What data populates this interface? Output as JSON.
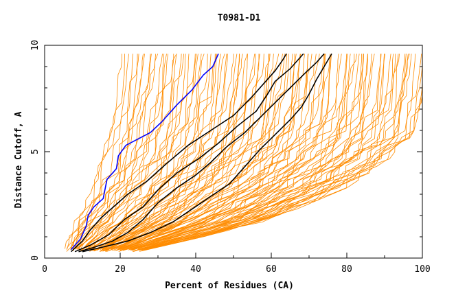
{
  "chart_data": {
    "type": "line",
    "title": "T0981-D1",
    "xlabel": "Percent of Residues (CA)",
    "ylabel": "Distance Cutoff, A",
    "xlim": [
      0,
      100
    ],
    "ylim": [
      0,
      10
    ],
    "x_ticks": [
      "0",
      "20",
      "40",
      "60",
      "80",
      "100"
    ],
    "y_ticks": [
      "0",
      "5",
      "10"
    ],
    "grid": false,
    "legend": "none",
    "colors": {
      "background_curves": "#ff8c00",
      "highlight": "#0000ff",
      "reference": "#000000"
    },
    "background_band": {
      "count": 110,
      "left_curve": [
        [
          5.5,
          0.35
        ],
        [
          7,
          1.2
        ],
        [
          9.5,
          2.2
        ],
        [
          12.5,
          3.5
        ],
        [
          15,
          5
        ],
        [
          16.5,
          6.5
        ],
        [
          17.5,
          8
        ],
        [
          18.5,
          9.6
        ]
      ],
      "right_curve": [
        [
          26,
          0.35
        ],
        [
          42,
          1.0
        ],
        [
          60,
          1.8
        ],
        [
          80,
          3.3
        ],
        [
          91,
          4.6
        ],
        [
          97.5,
          5.8
        ],
        [
          100,
          7.5
        ],
        [
          100,
          9.6
        ]
      ]
    },
    "series": [
      {
        "color": "#0000ff",
        "points": [
          [
            7,
            0.4
          ],
          [
            9.5,
            0.9
          ],
          [
            11,
            1.5
          ],
          [
            11.5,
            2.0
          ],
          [
            13,
            2.4
          ],
          [
            15.5,
            2.8
          ],
          [
            16.5,
            3.7
          ],
          [
            19,
            4.2
          ],
          [
            19.5,
            4.8
          ],
          [
            21.5,
            5.3
          ],
          [
            28,
            5.9
          ],
          [
            31,
            6.4
          ],
          [
            35,
            7.2
          ],
          [
            39,
            7.9
          ],
          [
            42,
            8.6
          ],
          [
            44.5,
            9.0
          ],
          [
            46,
            9.6
          ]
        ]
      },
      {
        "color": "#000000",
        "points": [
          [
            7,
            0.3
          ],
          [
            10,
            0.8
          ],
          [
            12,
            1.3
          ],
          [
            15,
            1.9
          ],
          [
            22,
            3.0
          ],
          [
            27,
            3.6
          ],
          [
            32,
            4.4
          ],
          [
            38,
            5.3
          ],
          [
            44,
            6.0
          ],
          [
            50,
            6.7
          ],
          [
            55,
            7.6
          ],
          [
            58,
            8.2
          ],
          [
            61,
            8.8
          ],
          [
            63,
            9.3
          ],
          [
            64,
            9.6
          ]
        ]
      },
      {
        "color": "#000000",
        "points": [
          [
            8,
            0.3
          ],
          [
            12,
            0.6
          ],
          [
            17,
            1.1
          ],
          [
            21,
            1.8
          ],
          [
            26,
            2.4
          ],
          [
            30,
            3.2
          ],
          [
            35,
            4.0
          ],
          [
            41,
            4.7
          ],
          [
            46,
            5.4
          ],
          [
            51,
            6.2
          ],
          [
            56,
            6.9
          ],
          [
            59,
            7.7
          ],
          [
            61,
            8.3
          ],
          [
            65,
            8.9
          ],
          [
            68.5,
            9.6
          ]
        ]
      },
      {
        "color": "#000000",
        "points": [
          [
            9,
            0.3
          ],
          [
            13,
            0.5
          ],
          [
            18,
            0.8
          ],
          [
            22,
            1.2
          ],
          [
            26,
            1.8
          ],
          [
            30,
            2.6
          ],
          [
            35,
            3.3
          ],
          [
            40,
            3.9
          ],
          [
            44,
            4.5
          ],
          [
            48,
            5.2
          ],
          [
            53,
            5.9
          ],
          [
            57,
            6.6
          ],
          [
            61,
            7.3
          ],
          [
            65,
            8.0
          ],
          [
            69,
            8.7
          ],
          [
            72,
            9.2
          ],
          [
            74,
            9.6
          ]
        ]
      },
      {
        "color": "#000000",
        "points": [
          [
            10,
            0.3
          ],
          [
            15,
            0.5
          ],
          [
            22,
            0.8
          ],
          [
            28,
            1.2
          ],
          [
            34,
            1.7
          ],
          [
            39,
            2.3
          ],
          [
            44,
            2.9
          ],
          [
            49,
            3.5
          ],
          [
            53,
            4.3
          ],
          [
            57,
            5.1
          ],
          [
            61,
            5.8
          ],
          [
            65,
            6.5
          ],
          [
            68,
            7.1
          ],
          [
            70,
            7.7
          ],
          [
            72,
            8.4
          ],
          [
            74,
            9.0
          ],
          [
            76,
            9.6
          ]
        ]
      }
    ]
  }
}
